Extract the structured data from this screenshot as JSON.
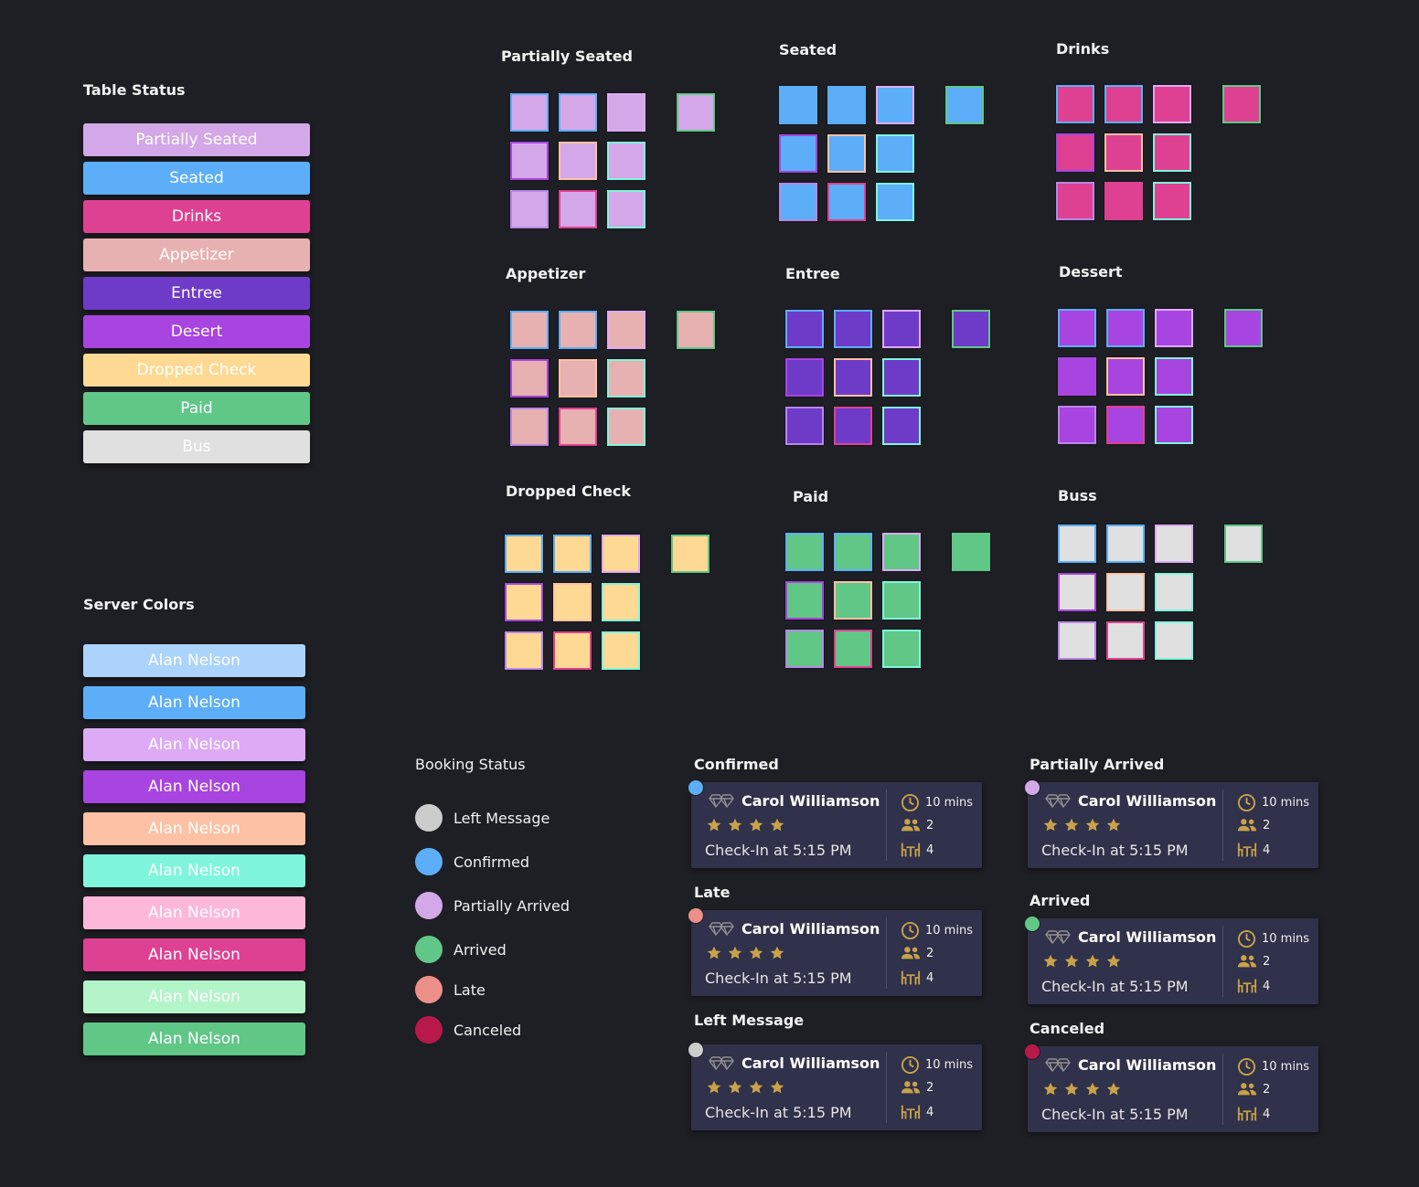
{
  "table_status": {
    "title": "Table Status",
    "items": [
      {
        "label": "Partially Seated",
        "color": "#d4a8e8"
      },
      {
        "label": "Seated",
        "color": "#5daef8"
      },
      {
        "label": "Drinks",
        "color": "#df4192"
      },
      {
        "label": "Appetizer",
        "color": "#e8b1b1"
      },
      {
        "label": "Entree",
        "color": "#6e3bc9"
      },
      {
        "label": "Desert",
        "color": "#a844e0"
      },
      {
        "label": "Dropped Check",
        "color": "#fed993"
      },
      {
        "label": "Paid",
        "color": "#60c787"
      },
      {
        "label": "Bus",
        "color": "#e0e0e0"
      }
    ]
  },
  "server_colors": {
    "title": "Server Colors",
    "items": [
      {
        "label": "Alan Nelson",
        "color": "#acd3fb"
      },
      {
        "label": "Alan Nelson",
        "color": "#5daef8"
      },
      {
        "label": "Alan Nelson",
        "color": "#ddaaf5"
      },
      {
        "label": "Alan Nelson",
        "color": "#a844e0"
      },
      {
        "label": "Alan Nelson",
        "color": "#fdc1a5"
      },
      {
        "label": "Alan Nelson",
        "color": "#7ff6dc"
      },
      {
        "label": "Alan Nelson",
        "color": "#fdb8d9"
      },
      {
        "label": "Alan Nelson",
        "color": "#df4192"
      },
      {
        "label": "Alan Nelson",
        "color": "#b4f4c9"
      },
      {
        "label": "Alan Nelson",
        "color": "#60c787"
      }
    ]
  },
  "server_border_colors": [
    "#acd3fb",
    "#5daef8",
    "#ddaaf5",
    "#a844e0",
    "#fdc1a5",
    "#7ff6dc",
    "#b986e8",
    "#df4192",
    "#b4f4c9",
    "#60c787"
  ],
  "table_groups": [
    {
      "title": "Partially Seated",
      "fill": "#d4a8e8"
    },
    {
      "title": "Seated",
      "fill": "#5daef8"
    },
    {
      "title": "Drinks",
      "fill": "#df4192"
    },
    {
      "title": "Appetizer",
      "fill": "#e8b1b1"
    },
    {
      "title": "Entree",
      "fill": "#6e3bc9"
    },
    {
      "title": "Dessert",
      "fill": "#a844e0"
    },
    {
      "title": "Dropped Check",
      "fill": "#fed993"
    },
    {
      "title": "Paid",
      "fill": "#60c787"
    },
    {
      "title": "Buss",
      "fill": "#e0e0e0"
    }
  ],
  "booking_status": {
    "title": "Booking Status",
    "items": [
      {
        "label": "Left Message",
        "color": "#cccccc"
      },
      {
        "label": "Confirmed",
        "color": "#5daef8"
      },
      {
        "label": "Partially Arrived",
        "color": "#d4a8e8"
      },
      {
        "label": "Arrived",
        "color": "#60c787"
      },
      {
        "label": "Late",
        "color": "#ee908a"
      },
      {
        "label": "Canceled",
        "color": "#b8184a"
      }
    ]
  },
  "booking_cards": [
    {
      "title": "Confirmed",
      "dot_color": "#5daef8",
      "name": "Carol Williamson",
      "rating": 4,
      "checkin": "Check-In at 5:15 PM",
      "wait": "10 mins",
      "party": "2",
      "table": "4"
    },
    {
      "title": "Partially Arrived",
      "dot_color": "#d4a8e8",
      "name": "Carol Williamson",
      "rating": 4,
      "checkin": "Check-In at 5:15 PM",
      "wait": "10 mins",
      "party": "2",
      "table": "4"
    },
    {
      "title": "Late",
      "dot_color": "#ee908a",
      "name": "Carol Williamson",
      "rating": 4,
      "checkin": "Check-In at 5:15 PM",
      "wait": "10 mins",
      "party": "2",
      "table": "4"
    },
    {
      "title": "Arrived",
      "dot_color": "#60c787",
      "name": "Carol Williamson",
      "rating": 4,
      "checkin": "Check-In at 5:15 PM",
      "wait": "10 mins",
      "party": "2",
      "table": "4"
    },
    {
      "title": "Left Message",
      "dot_color": "#cccccc",
      "name": "Carol Williamson",
      "rating": 4,
      "checkin": "Check-In at 5:15 PM",
      "wait": "10 mins",
      "party": "2",
      "table": "4"
    },
    {
      "title": "Canceled",
      "dot_color": "#b8184a",
      "name": "Carol Williamson",
      "rating": 4,
      "checkin": "Check-In at 5:15 PM",
      "wait": "10 mins",
      "party": "2",
      "table": "4"
    }
  ],
  "icon_color": "#c8a24a"
}
